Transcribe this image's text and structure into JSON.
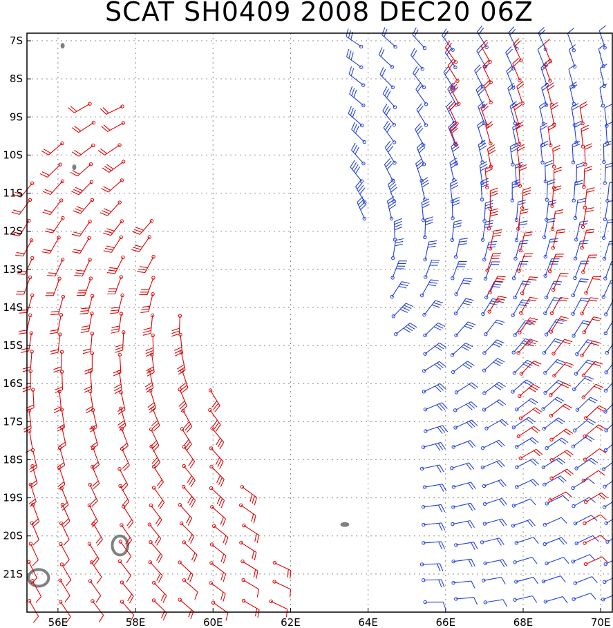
{
  "title": "SCAT SH0409 2008 DEC20 06Z",
  "lon_range": [
    55.2,
    70.3
  ],
  "lat_range": [
    -22.0,
    -6.8
  ],
  "lon_ticks": [
    {
      "value": 56,
      "label": "56E"
    },
    {
      "value": 58,
      "label": "58E"
    },
    {
      "value": 60,
      "label": "60E"
    },
    {
      "value": 62,
      "label": "62E"
    },
    {
      "value": 64,
      "label": "64E"
    },
    {
      "value": 66,
      "label": "66E"
    },
    {
      "value": 68,
      "label": "68E"
    },
    {
      "value": 70,
      "label": "70E"
    }
  ],
  "lat_ticks": [
    {
      "value": -7,
      "label": "7S"
    },
    {
      "value": -8,
      "label": "8S"
    },
    {
      "value": -9,
      "label": "9S"
    },
    {
      "value": -10,
      "label": "10S"
    },
    {
      "value": -11,
      "label": "11S"
    },
    {
      "value": -12,
      "label": "12S"
    },
    {
      "value": -13,
      "label": "13S"
    },
    {
      "value": -14,
      "label": "14S"
    },
    {
      "value": -15,
      "label": "15S"
    },
    {
      "value": -16,
      "label": "16S"
    },
    {
      "value": -17,
      "label": "17S"
    },
    {
      "value": -18,
      "label": "18S"
    },
    {
      "value": -19,
      "label": "19S"
    },
    {
      "value": -20,
      "label": "20S"
    },
    {
      "value": -21,
      "label": "21S"
    }
  ],
  "colors": {
    "pass_west": "#e00000",
    "pass_east_blue": "#1f3fdc",
    "pass_east_red": "#e00000",
    "land": "#808080",
    "frame": "#000000"
  },
  "islands": [
    {
      "name": "Reunion",
      "lon": 55.5,
      "lat": -21.1,
      "rx": 0.26,
      "ry": 0.22
    },
    {
      "name": "Mauritius",
      "lon": 57.6,
      "lat": -20.25,
      "rx": 0.2,
      "ry": 0.25
    },
    {
      "name": "Rodrigues",
      "lon": 63.4,
      "lat": -19.7,
      "rx": 0.1,
      "ry": 0.05
    },
    {
      "name": "Islet-A",
      "lon": 56.12,
      "lat": -7.13,
      "rx": 0.04,
      "ry": 0.06
    },
    {
      "name": "Islet-B",
      "lon": 56.42,
      "lat": -10.32,
      "rx": 0.04,
      "ry": 0.06
    }
  ],
  "swaths": [
    {
      "name": "west-pass",
      "color_key": "pass_west",
      "polygon": [
        [
          55.2,
          -11.0
        ],
        [
          56.5,
          -8.5
        ],
        [
          57.6,
          -8.3
        ],
        [
          58.2,
          -11.0
        ],
        [
          59.3,
          -14.5
        ],
        [
          60.3,
          -17.0
        ],
        [
          61.2,
          -19.5
        ],
        [
          61.8,
          -21.0
        ],
        [
          62.0,
          -22.0
        ],
        [
          55.2,
          -22.0
        ]
      ]
    },
    {
      "name": "east-pass-blue",
      "color_key": "pass_east_blue",
      "polygon": [
        [
          63.5,
          -7.0
        ],
        [
          70.3,
          -7.0
        ],
        [
          70.3,
          -22.0
        ],
        [
          65.3,
          -22.0
        ],
        [
          65.0,
          -16.0
        ],
        [
          64.3,
          -14.3
        ],
        [
          63.4,
          -9.0
        ]
      ]
    },
    {
      "name": "east-pass-red",
      "color_key": "pass_east_red",
      "polygon": [
        [
          66.0,
          -7.0
        ],
        [
          69.4,
          -7.0
        ],
        [
          69.6,
          -9.5
        ],
        [
          70.3,
          -9.5
        ],
        [
          70.3,
          -20.8
        ],
        [
          69.3,
          -20.8
        ],
        [
          68.5,
          -19.0
        ],
        [
          67.5,
          -18.0
        ],
        [
          67.0,
          -13.0
        ],
        [
          66.6,
          -11.0
        ],
        [
          65.8,
          -9.0
        ]
      ]
    }
  ]
}
